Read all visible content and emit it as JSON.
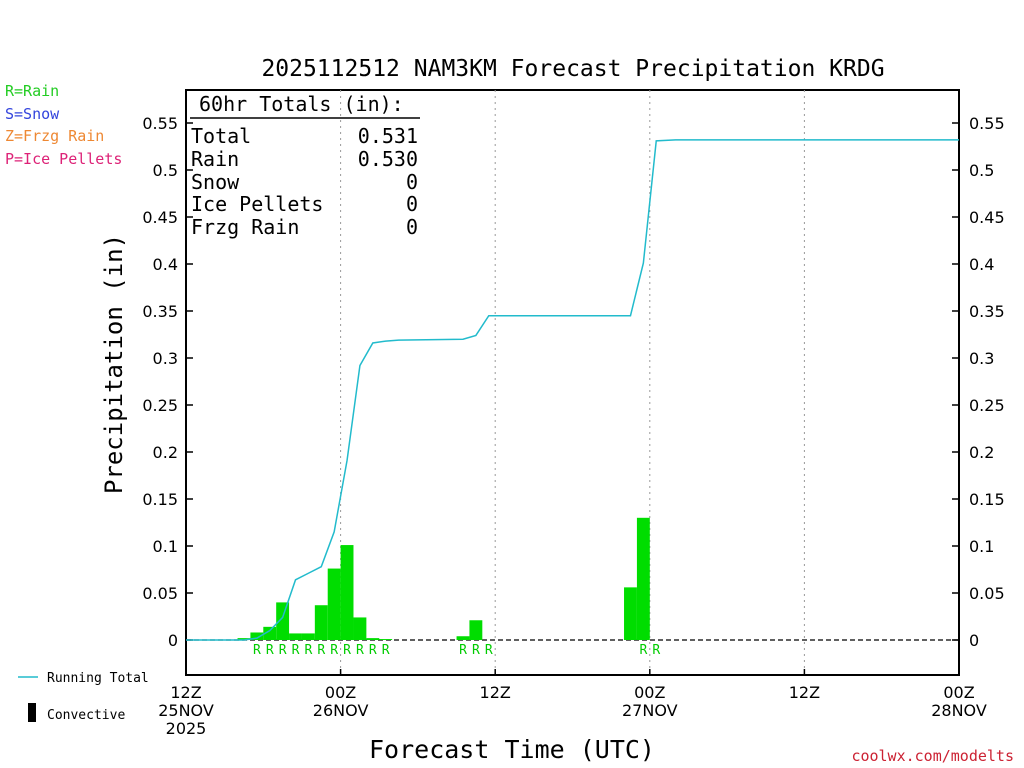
{
  "chart_data": {
    "type": "bar",
    "title": "2025112512 NAM3KM Forecast Precipitation KRDG",
    "xlabel": "Forecast Time (UTC)",
    "ylabel": "Precipitation (in)",
    "ylim": [
      -0.04,
      0.58
    ],
    "xlim_hours": [
      0,
      60
    ],
    "y_ticks": [
      "0",
      "0.05",
      "0.1",
      "0.15",
      "0.2",
      "0.25",
      "0.3",
      "0.35",
      "0.4",
      "0.45",
      "0.5",
      "0.55"
    ],
    "y_tick_values": [
      0,
      0.05,
      0.1,
      0.15,
      0.2,
      0.25,
      0.3,
      0.35,
      0.4,
      0.45,
      0.5,
      0.55
    ],
    "x_ticks": [
      {
        "hour": 0,
        "line1": "12Z",
        "line2": "25NOV",
        "line3": "2025"
      },
      {
        "hour": 12,
        "line1": "00Z",
        "line2": "26NOV",
        "line3": ""
      },
      {
        "hour": 24,
        "line1": "12Z",
        "line2": "",
        "line3": ""
      },
      {
        "hour": 36,
        "line1": "00Z",
        "line2": "27NOV",
        "line3": ""
      },
      {
        "hour": 48,
        "line1": "12Z",
        "line2": "",
        "line3": ""
      },
      {
        "hour": 60,
        "line1": "00Z",
        "line2": "28NOV",
        "line3": ""
      }
    ],
    "grid_hours": [
      12,
      24,
      36,
      48
    ],
    "bars": {
      "name": "Rain",
      "color": "#00dd00",
      "hours": [
        5,
        6,
        7,
        8,
        9,
        10,
        11,
        12,
        13,
        14,
        15,
        16,
        22,
        23,
        35,
        36
      ],
      "values": [
        0.002,
        0.008,
        0.014,
        0.04,
        0.007,
        0.007,
        0.037,
        0.076,
        0.101,
        0.024,
        0.002,
        0.001,
        0.004,
        0.021,
        0.056,
        0.13
      ]
    },
    "running_total": {
      "name": "Running Total",
      "color": "#22bbcc",
      "hours": [
        0,
        4.5,
        5.5,
        6.5,
        7.5,
        8.5,
        9.5,
        10.5,
        11.5,
        12.5,
        13.5,
        14.5,
        15.5,
        16.5,
        21.5,
        22.5,
        23.5,
        34.5,
        35.5,
        36.5,
        38,
        60
      ],
      "values": [
        0,
        0,
        0.002,
        0.01,
        0.024,
        0.064,
        0.071,
        0.078,
        0.115,
        0.191,
        0.292,
        0.316,
        0.318,
        0.319,
        0.32,
        0.324,
        0.345,
        0.345,
        0.401,
        0.531,
        0.532,
        0.532
      ]
    },
    "type_markers": {
      "label": "R",
      "color": "#00cc00",
      "hours": [
        5.5,
        6.5,
        7.5,
        8.5,
        9.5,
        10.5,
        11.5,
        12.5,
        13.5,
        14.5,
        15.5,
        21.5,
        22.5,
        23.5,
        35.5,
        36.5
      ]
    }
  },
  "totals_box": {
    "heading": "60hr Totals (in):",
    "rows": [
      {
        "label": "Total",
        "value": "0.531"
      },
      {
        "label": "Rain",
        "value": "0.530"
      },
      {
        "label": "Snow",
        "value": "0"
      },
      {
        "label": "Ice Pellets",
        "value": "0"
      },
      {
        "label": "Frzg Rain",
        "value": "0"
      }
    ]
  },
  "type_legend": [
    {
      "text": "R=Rain",
      "color": "#22cc22"
    },
    {
      "text": "S=Snow",
      "color": "#3344dd"
    },
    {
      "text": "Z=Frzg Rain",
      "color": "#ee8833"
    },
    {
      "text": "P=Ice Pellets",
      "color": "#dd2277"
    }
  ],
  "bottom_legend": {
    "running_total_label": "Running Total",
    "running_total_color": "#22bbcc",
    "convective_label": "Convective"
  },
  "credit": "coolwx.com/modelts",
  "credit_color": "#cc2233"
}
